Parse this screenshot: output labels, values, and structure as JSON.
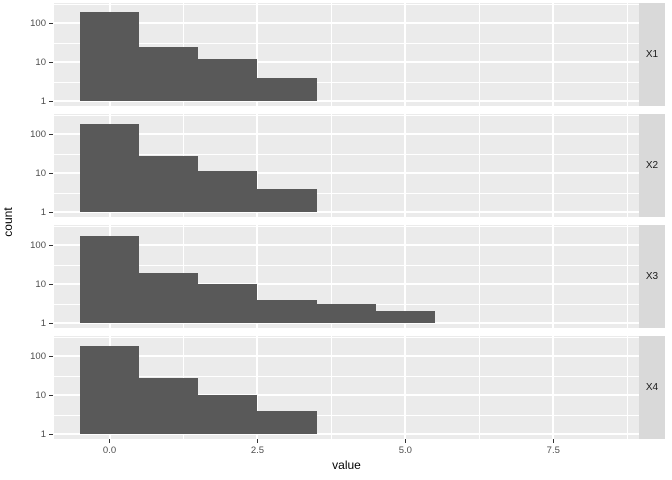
{
  "chart_data": {
    "type": "bar",
    "subtype": "faceted-histogram",
    "title": "",
    "xlabel": "value",
    "ylabel": "count",
    "x_ticks": [
      {
        "label": "0.0",
        "value": 0
      },
      {
        "label": "2.5",
        "value": 2.5
      },
      {
        "label": "5.0",
        "value": 5
      },
      {
        "label": "7.5",
        "value": 7.5
      }
    ],
    "y_ticks": [
      {
        "label": "100",
        "value": 100
      },
      {
        "label": "10",
        "value": 10
      },
      {
        "label": "1",
        "value": 1
      }
    ],
    "x_minor_ticks": [
      1.25,
      3.75,
      6.25,
      8.75
    ],
    "y_minor_ticks": [
      3.162,
      31.62,
      316.2
    ],
    "x_range": [
      -0.95,
      8.95
    ],
    "y_scale": "log10",
    "bin_width": 1,
    "grid": "on",
    "legend": "none",
    "facets": [
      {
        "label": "X1",
        "bins": [
          {
            "x": 0,
            "count": 193
          },
          {
            "x": 1,
            "count": 24
          },
          {
            "x": 2,
            "count": 12
          },
          {
            "x": 3,
            "count": 4
          }
        ]
      },
      {
        "label": "X2",
        "bins": [
          {
            "x": 0,
            "count": 181
          },
          {
            "x": 1,
            "count": 27
          },
          {
            "x": 2,
            "count": 11
          },
          {
            "x": 3,
            "count": 4
          }
        ]
      },
      {
        "label": "X3",
        "bins": [
          {
            "x": 0,
            "count": 175
          },
          {
            "x": 1,
            "count": 19
          },
          {
            "x": 2,
            "count": 10
          },
          {
            "x": 3,
            "count": 4
          },
          {
            "x": 4,
            "count": 3
          },
          {
            "x": 5,
            "count": 2
          }
        ]
      },
      {
        "label": "X4",
        "bins": [
          {
            "x": 0,
            "count": 177
          },
          {
            "x": 1,
            "count": 28
          },
          {
            "x": 2,
            "count": 10
          },
          {
            "x": 3,
            "count": 4
          }
        ]
      }
    ]
  },
  "colors": {
    "bar": "#595959",
    "panel_bg": "#EBEBEB",
    "strip_bg": "#D9D9D9",
    "grid": "#FFFFFF",
    "axis_text": "#4D4D4D",
    "strip_text": "#1A1A1A",
    "title_text": "#000000",
    "tick_mark": "#333333"
  }
}
